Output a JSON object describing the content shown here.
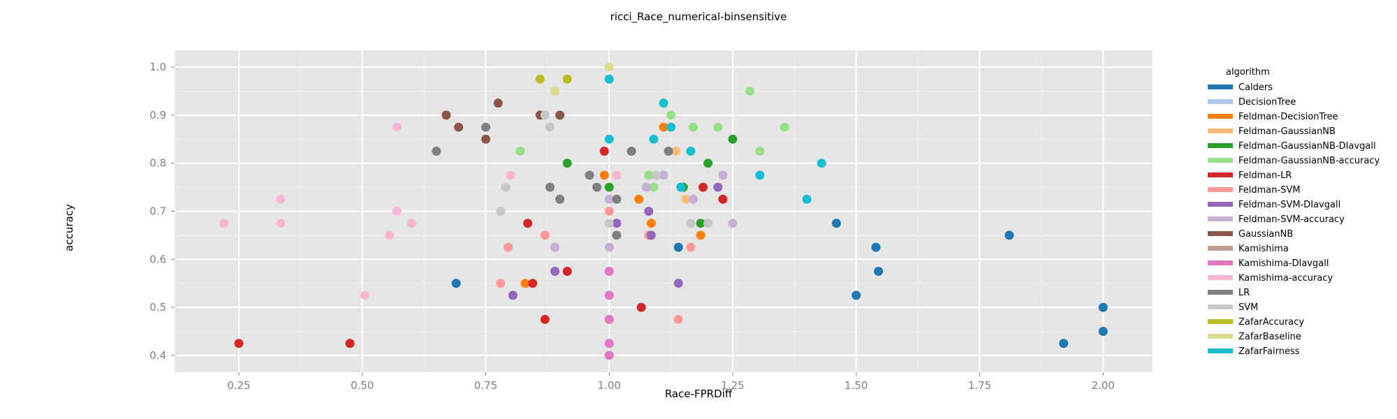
{
  "chart_data": {
    "type": "scatter",
    "title": "ricci_Race_numerical-binsensitive",
    "xlabel": "Race-FPRDiff",
    "ylabel": "accuracy",
    "xlim": [
      0.12,
      2.1
    ],
    "ylim": [
      0.365,
      1.035
    ],
    "xticks": [
      0.25,
      0.5,
      0.75,
      1.0,
      1.25,
      1.5,
      1.75,
      2.0
    ],
    "xtick_labels": [
      "0.25",
      "0.50",
      "0.75",
      "1.00",
      "1.25",
      "1.50",
      "1.75",
      "2.00"
    ],
    "yticks": [
      0.4,
      0.5,
      0.6,
      0.7,
      0.8,
      0.9,
      1.0
    ],
    "ytick_labels": [
      "0.4",
      "0.5",
      "0.6",
      "0.7",
      "0.8",
      "0.9",
      "1.0"
    ],
    "grid": true,
    "legend_position": "right",
    "legend_title": "algorithm",
    "series": [
      {
        "name": "Calders",
        "color": "#1f77b4",
        "points": [
          [
            0.69,
            0.55
          ],
          [
            1.14,
            0.625
          ],
          [
            1.46,
            0.675
          ],
          [
            1.5,
            0.525
          ],
          [
            1.54,
            0.625
          ],
          [
            1.545,
            0.575
          ],
          [
            1.81,
            0.65
          ],
          [
            1.92,
            0.425
          ],
          [
            2.0,
            0.5
          ],
          [
            2.0,
            0.45
          ]
        ]
      },
      {
        "name": "DecisionTree",
        "color": "#aec7e8",
        "points": []
      },
      {
        "name": "Feldman-DecisionTree",
        "color": "#ff7f0e",
        "points": [
          [
            0.83,
            0.55
          ],
          [
            0.99,
            0.775
          ],
          [
            1.06,
            0.725
          ],
          [
            1.085,
            0.675
          ],
          [
            1.11,
            0.875
          ],
          [
            1.185,
            0.65
          ]
        ]
      },
      {
        "name": "Feldman-GaussianNB",
        "color": "#ffbb78",
        "points": [
          [
            1.135,
            0.825
          ],
          [
            1.155,
            0.725
          ]
        ]
      },
      {
        "name": "Feldman-GaussianNB-DIavgall",
        "color": "#2ca02c",
        "points": [
          [
            0.915,
            0.8
          ],
          [
            1.0,
            0.75
          ],
          [
            1.15,
            0.75
          ],
          [
            1.185,
            0.675
          ],
          [
            1.2,
            0.8
          ],
          [
            1.25,
            0.85
          ]
        ]
      },
      {
        "name": "Feldman-GaussianNB-accuracy",
        "color": "#98df8a",
        "points": [
          [
            0.82,
            0.825
          ],
          [
            1.08,
            0.775
          ],
          [
            1.09,
            0.75
          ],
          [
            1.125,
            0.9
          ],
          [
            1.17,
            0.875
          ],
          [
            1.22,
            0.875
          ],
          [
            1.285,
            0.95
          ],
          [
            1.305,
            0.825
          ],
          [
            1.355,
            0.875
          ]
        ]
      },
      {
        "name": "Feldman-LR",
        "color": "#d62728",
        "points": [
          [
            0.25,
            0.425
          ],
          [
            0.475,
            0.425
          ],
          [
            0.835,
            0.675
          ],
          [
            0.845,
            0.55
          ],
          [
            0.87,
            0.475
          ],
          [
            0.915,
            0.575
          ],
          [
            0.99,
            0.825
          ],
          [
            1.065,
            0.5
          ],
          [
            1.19,
            0.75
          ],
          [
            1.23,
            0.725
          ]
        ]
      },
      {
        "name": "Feldman-SVM",
        "color": "#ff9896",
        "points": [
          [
            0.78,
            0.55
          ],
          [
            0.795,
            0.625
          ],
          [
            0.87,
            0.65
          ],
          [
            1.0,
            0.7
          ],
          [
            1.08,
            0.65
          ],
          [
            1.14,
            0.475
          ],
          [
            1.165,
            0.625
          ]
        ]
      },
      {
        "name": "Feldman-SVM-DIavgall",
        "color": "#9467bd",
        "points": [
          [
            0.805,
            0.525
          ],
          [
            0.89,
            0.575
          ],
          [
            1.015,
            0.675
          ],
          [
            1.08,
            0.7
          ],
          [
            1.085,
            0.65
          ],
          [
            1.14,
            0.55
          ],
          [
            1.22,
            0.75
          ]
        ]
      },
      {
        "name": "Feldman-SVM-accuracy",
        "color": "#c5b0d5",
        "points": [
          [
            0.89,
            0.625
          ],
          [
            1.0,
            0.725
          ],
          [
            1.0,
            0.625
          ],
          [
            1.075,
            0.75
          ],
          [
            1.11,
            0.775
          ],
          [
            1.17,
            0.725
          ],
          [
            1.23,
            0.775
          ],
          [
            1.25,
            0.675
          ]
        ]
      },
      {
        "name": "GaussianNB",
        "color": "#8c564b",
        "points": [
          [
            0.67,
            0.9
          ],
          [
            0.695,
            0.875
          ],
          [
            0.75,
            0.85
          ],
          [
            0.775,
            0.925
          ],
          [
            0.86,
            0.9
          ],
          [
            0.9,
            0.9
          ]
        ]
      },
      {
        "name": "Kamishima",
        "color": "#c49c94",
        "points": []
      },
      {
        "name": "Kamishima-DIavgall",
        "color": "#e377c2",
        "points": [
          [
            1.0,
            0.575
          ],
          [
            1.0,
            0.525
          ],
          [
            1.0,
            0.475
          ],
          [
            1.0,
            0.425
          ],
          [
            1.0,
            0.4
          ]
        ]
      },
      {
        "name": "Kamishima-accuracy",
        "color": "#f7b6d2",
        "points": [
          [
            0.22,
            0.675
          ],
          [
            0.335,
            0.725
          ],
          [
            0.335,
            0.675
          ],
          [
            0.505,
            0.525
          ],
          [
            0.555,
            0.65
          ],
          [
            0.57,
            0.875
          ],
          [
            0.57,
            0.7
          ],
          [
            0.6,
            0.675
          ],
          [
            0.8,
            0.775
          ],
          [
            1.015,
            0.775
          ]
        ]
      },
      {
        "name": "LR",
        "color": "#7f7f7f",
        "points": [
          [
            0.65,
            0.825
          ],
          [
            0.75,
            0.875
          ],
          [
            0.88,
            0.75
          ],
          [
            0.9,
            0.725
          ],
          [
            0.96,
            0.775
          ],
          [
            0.975,
            0.75
          ],
          [
            1.015,
            0.725
          ],
          [
            1.015,
            0.65
          ],
          [
            1.045,
            0.825
          ],
          [
            1.12,
            0.825
          ]
        ]
      },
      {
        "name": "SVM",
        "color": "#c7c7c7",
        "points": [
          [
            0.78,
            0.7
          ],
          [
            0.79,
            0.75
          ],
          [
            0.87,
            0.9
          ],
          [
            0.88,
            0.875
          ],
          [
            1.0,
            0.675
          ],
          [
            1.095,
            0.775
          ],
          [
            1.165,
            0.675
          ],
          [
            1.2,
            0.675
          ]
        ]
      },
      {
        "name": "ZafarAccuracy",
        "color": "#bcbd22",
        "points": [
          [
            0.86,
            0.975
          ],
          [
            0.915,
            0.975
          ]
        ]
      },
      {
        "name": "ZafarBaseline",
        "color": "#dbdb8d",
        "points": [
          [
            0.89,
            0.95
          ],
          [
            1.0,
            1.0
          ]
        ]
      },
      {
        "name": "ZafarFairness",
        "color": "#17becf",
        "points": [
          [
            1.0,
            0.975
          ],
          [
            1.0,
            0.85
          ],
          [
            1.09,
            0.85
          ],
          [
            1.11,
            0.925
          ],
          [
            1.125,
            0.875
          ],
          [
            1.145,
            0.75
          ],
          [
            1.165,
            0.825
          ],
          [
            1.305,
            0.775
          ],
          [
            1.4,
            0.725
          ],
          [
            1.43,
            0.8
          ]
        ]
      }
    ]
  }
}
